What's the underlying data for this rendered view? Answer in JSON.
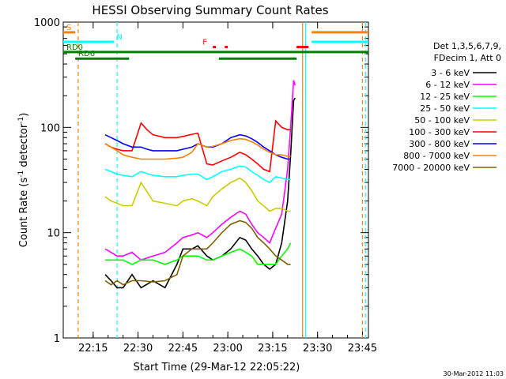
{
  "chart_data": {
    "type": "line",
    "title": "HESSI Observing Summary Count Rates",
    "xlabel": "Start Time (29-Mar-12 22:05:22)",
    "ylabel_main": "Count Rate (s",
    "ylabel_sup1": "-1",
    "ylabel_mid": " detector",
    "ylabel_sup2": "-1",
    "ylabel_end": ")",
    "yscale": "log",
    "ylim": [
      1,
      1000
    ],
    "xlim_minutes": [
      0,
      102
    ],
    "x_ticks": [
      {
        "m": 10,
        "label": "22:15"
      },
      {
        "m": 25,
        "label": "22:30"
      },
      {
        "m": 40,
        "label": "22:45"
      },
      {
        "m": 55,
        "label": "23:00"
      },
      {
        "m": 70,
        "label": "23:15"
      },
      {
        "m": 85,
        "label": "23:30"
      },
      {
        "m": 100,
        "label": "23:45"
      }
    ],
    "y_ticks": [
      {
        "v": 1,
        "label": "1"
      },
      {
        "v": 10,
        "label": "10"
      },
      {
        "v": 100,
        "label": "100"
      },
      {
        "v": 1000,
        "label": "1000"
      }
    ],
    "legend_header": [
      "Det 1,3,5,6,7,9,",
      "FDecim 1, Att 0"
    ],
    "series": [
      {
        "name": "3 - 6 keV",
        "color": "#000000",
        "points": [
          [
            14,
            4
          ],
          [
            16,
            3.5
          ],
          [
            18,
            3
          ],
          [
            20,
            3
          ],
          [
            23,
            4
          ],
          [
            26,
            3
          ],
          [
            30,
            3.5
          ],
          [
            34,
            3
          ],
          [
            38,
            5
          ],
          [
            40,
            7
          ],
          [
            43,
            7
          ],
          [
            45,
            7.5
          ],
          [
            48,
            6
          ],
          [
            50,
            5.5
          ],
          [
            53,
            6
          ],
          [
            56,
            7
          ],
          [
            59,
            9
          ],
          [
            61,
            8.5
          ],
          [
            63,
            7
          ],
          [
            65,
            6
          ],
          [
            67,
            5
          ],
          [
            69,
            4.5
          ],
          [
            71,
            5
          ],
          [
            73,
            8
          ],
          [
            75,
            20
          ],
          [
            76,
            55
          ],
          [
            77,
            180
          ],
          [
            77.5,
            190
          ]
        ]
      },
      {
        "name": "6 - 12 keV",
        "color": "#ff00ff",
        "points": [
          [
            14,
            7
          ],
          [
            16,
            6.5
          ],
          [
            18,
            6
          ],
          [
            20,
            6
          ],
          [
            23,
            6.5
          ],
          [
            26,
            5.5
          ],
          [
            30,
            6
          ],
          [
            34,
            6.5
          ],
          [
            38,
            8
          ],
          [
            40,
            9
          ],
          [
            43,
            9.5
          ],
          [
            45,
            10
          ],
          [
            48,
            9
          ],
          [
            50,
            10
          ],
          [
            53,
            12
          ],
          [
            56,
            14
          ],
          [
            59,
            16
          ],
          [
            61,
            15
          ],
          [
            63,
            12
          ],
          [
            65,
            10
          ],
          [
            67,
            9
          ],
          [
            69,
            8
          ],
          [
            71,
            11
          ],
          [
            73,
            15
          ],
          [
            75,
            40
          ],
          [
            76,
            100
          ],
          [
            77,
            280
          ],
          [
            77.5,
            250
          ]
        ]
      },
      {
        "name": "12 - 25 keV",
        "color": "#00ff00",
        "points": [
          [
            14,
            5.5
          ],
          [
            16,
            5.5
          ],
          [
            18,
            5.5
          ],
          [
            20,
            5.5
          ],
          [
            23,
            5
          ],
          [
            26,
            5.5
          ],
          [
            30,
            5.5
          ],
          [
            34,
            5
          ],
          [
            38,
            5.5
          ],
          [
            40,
            6
          ],
          [
            43,
            6
          ],
          [
            45,
            6
          ],
          [
            48,
            5.5
          ],
          [
            50,
            5.5
          ],
          [
            53,
            6
          ],
          [
            56,
            6.5
          ],
          [
            59,
            7
          ],
          [
            61,
            6.5
          ],
          [
            63,
            6
          ],
          [
            65,
            5
          ],
          [
            67,
            5
          ],
          [
            69,
            5
          ],
          [
            71,
            5
          ],
          [
            73,
            6
          ],
          [
            75,
            7
          ],
          [
            76,
            8
          ]
        ]
      },
      {
        "name": "25 - 50 keV",
        "color": "#00ffff",
        "points": [
          [
            14,
            40
          ],
          [
            16,
            38
          ],
          [
            18,
            36
          ],
          [
            20,
            35
          ],
          [
            23,
            34
          ],
          [
            26,
            38
          ],
          [
            30,
            35
          ],
          [
            34,
            34
          ],
          [
            38,
            34
          ],
          [
            40,
            35
          ],
          [
            43,
            36
          ],
          [
            45,
            36
          ],
          [
            48,
            32
          ],
          [
            50,
            34
          ],
          [
            53,
            38
          ],
          [
            56,
            40
          ],
          [
            59,
            43
          ],
          [
            61,
            42
          ],
          [
            63,
            38
          ],
          [
            65,
            35
          ],
          [
            67,
            32
          ],
          [
            69,
            30
          ],
          [
            71,
            34
          ],
          [
            73,
            33
          ],
          [
            75,
            32
          ],
          [
            76,
            32
          ]
        ]
      },
      {
        "name": "50 - 100 keV",
        "color": "#cccc00",
        "points": [
          [
            14,
            22
          ],
          [
            16,
            20
          ],
          [
            18,
            19
          ],
          [
            20,
            18
          ],
          [
            23,
            18
          ],
          [
            26,
            30
          ],
          [
            30,
            20
          ],
          [
            34,
            19
          ],
          [
            38,
            18
          ],
          [
            40,
            20
          ],
          [
            43,
            21
          ],
          [
            45,
            20
          ],
          [
            48,
            18
          ],
          [
            50,
            22
          ],
          [
            53,
            26
          ],
          [
            56,
            30
          ],
          [
            59,
            33
          ],
          [
            61,
            30
          ],
          [
            63,
            25
          ],
          [
            65,
            20
          ],
          [
            67,
            18
          ],
          [
            69,
            16
          ],
          [
            71,
            17
          ],
          [
            73,
            17
          ],
          [
            75,
            16
          ],
          [
            76,
            16
          ]
        ]
      },
      {
        "name": "100 - 300 keV",
        "color": "#ff0000",
        "points": [
          [
            14,
            70
          ],
          [
            16,
            65
          ],
          [
            18,
            62
          ],
          [
            20,
            60
          ],
          [
            23,
            60
          ],
          [
            26,
            110
          ],
          [
            28,
            95
          ],
          [
            30,
            85
          ],
          [
            34,
            80
          ],
          [
            38,
            80
          ],
          [
            40,
            82
          ],
          [
            43,
            86
          ],
          [
            45,
            88
          ],
          [
            48,
            45
          ],
          [
            50,
            44
          ],
          [
            53,
            48
          ],
          [
            56,
            52
          ],
          [
            59,
            58
          ],
          [
            61,
            55
          ],
          [
            63,
            50
          ],
          [
            65,
            45
          ],
          [
            67,
            40
          ],
          [
            69,
            38
          ],
          [
            71,
            115
          ],
          [
            73,
            100
          ],
          [
            75,
            95
          ],
          [
            76,
            95
          ]
        ]
      },
      {
        "name": "300 - 800 keV",
        "color": "#0000ff",
        "points": [
          [
            14,
            85
          ],
          [
            16,
            80
          ],
          [
            18,
            75
          ],
          [
            20,
            70
          ],
          [
            23,
            65
          ],
          [
            26,
            65
          ],
          [
            28,
            62
          ],
          [
            30,
            60
          ],
          [
            34,
            60
          ],
          [
            38,
            60
          ],
          [
            40,
            62
          ],
          [
            43,
            65
          ],
          [
            45,
            70
          ],
          [
            48,
            65
          ],
          [
            50,
            65
          ],
          [
            53,
            70
          ],
          [
            56,
            80
          ],
          [
            59,
            85
          ],
          [
            61,
            83
          ],
          [
            63,
            78
          ],
          [
            65,
            72
          ],
          [
            67,
            65
          ],
          [
            69,
            60
          ],
          [
            71,
            55
          ],
          [
            73,
            52
          ],
          [
            75,
            50
          ],
          [
            76,
            50
          ]
        ]
      },
      {
        "name": "800 - 7000 keV",
        "color": "#ff8000",
        "points": [
          [
            14,
            70
          ],
          [
            16,
            65
          ],
          [
            18,
            60
          ],
          [
            20,
            55
          ],
          [
            23,
            52
          ],
          [
            26,
            50
          ],
          [
            28,
            50
          ],
          [
            30,
            50
          ],
          [
            34,
            50
          ],
          [
            38,
            51
          ],
          [
            40,
            52
          ],
          [
            43,
            58
          ],
          [
            45,
            70
          ],
          [
            48,
            65
          ],
          [
            50,
            66
          ],
          [
            53,
            70
          ],
          [
            56,
            75
          ],
          [
            59,
            78
          ],
          [
            61,
            77
          ],
          [
            63,
            73
          ],
          [
            65,
            68
          ],
          [
            67,
            62
          ],
          [
            69,
            58
          ],
          [
            71,
            55
          ],
          [
            73,
            55
          ],
          [
            75,
            53
          ],
          [
            76,
            53
          ]
        ]
      },
      {
        "name": "7000 - 20000 keV",
        "color": "#806000",
        "points": [
          [
            14,
            3.5
          ],
          [
            16,
            3.2
          ],
          [
            18,
            3.5
          ],
          [
            20,
            3.2
          ],
          [
            23,
            3.5
          ],
          [
            26,
            3.5
          ],
          [
            30,
            3.4
          ],
          [
            34,
            3.5
          ],
          [
            38,
            4
          ],
          [
            40,
            6
          ],
          [
            43,
            7
          ],
          [
            45,
            7
          ],
          [
            48,
            7
          ],
          [
            50,
            8
          ],
          [
            53,
            10
          ],
          [
            56,
            12
          ],
          [
            59,
            13
          ],
          [
            61,
            12.5
          ],
          [
            63,
            11
          ],
          [
            65,
            9
          ],
          [
            67,
            8
          ],
          [
            69,
            7
          ],
          [
            71,
            6
          ],
          [
            73,
            5.5
          ],
          [
            75,
            5
          ],
          [
            76,
            5
          ]
        ]
      }
    ],
    "flags": [
      {
        "label": "S",
        "color": "#ff8000",
        "value": 800,
        "segments": [
          [
            0,
            4
          ],
          [
            83,
            102
          ]
        ]
      },
      {
        "label": "N",
        "color": "#00ffff",
        "value": 650,
        "segments": [
          [
            0,
            17
          ],
          [
            83,
            102
          ]
        ]
      },
      {
        "label": "RD0",
        "color": "#008000",
        "value": 520,
        "segments": [
          [
            0,
            102
          ]
        ]
      },
      {
        "label": "RD6",
        "color": "#008000",
        "value": 450,
        "segments": [
          [
            4,
            22
          ],
          [
            52,
            78
          ]
        ]
      },
      {
        "label": "F",
        "color": "#ff0000",
        "value": 580,
        "segments": [
          [
            50,
            51
          ],
          [
            54,
            55
          ],
          [
            78,
            82
          ]
        ]
      }
    ],
    "vlines": [
      {
        "m": 5,
        "color": "#ff8000",
        "dash": true
      },
      {
        "m": 18,
        "color": "#00ffff",
        "dash": true
      },
      {
        "m": 80,
        "color": "#ff8000",
        "dash": false
      },
      {
        "m": 81,
        "color": "#00ffff",
        "dash": false
      },
      {
        "m": 100,
        "color": "#ff8000",
        "dash": true
      },
      {
        "m": 101,
        "color": "#00ffff",
        "dash": true
      }
    ],
    "timestamp": "30-Mar-2012 11:03"
  }
}
